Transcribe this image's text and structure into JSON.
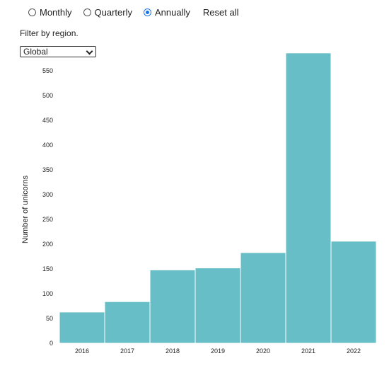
{
  "controls": {
    "period_options": [
      {
        "label": "Monthly",
        "selected": false
      },
      {
        "label": "Quarterly",
        "selected": false
      },
      {
        "label": "Annually",
        "selected": true
      }
    ],
    "reset_label": "Reset all"
  },
  "filter": {
    "label": "Filter by region.",
    "selected_region": "Global"
  },
  "colors": {
    "bar": "#67bec6",
    "radio_accent": "#1a73e8"
  },
  "chart_data": {
    "type": "bar",
    "categories": [
      "2016",
      "2017",
      "2018",
      "2019",
      "2020",
      "2021",
      "2022"
    ],
    "values": [
      63,
      84,
      148,
      152,
      183,
      586,
      206
    ],
    "xlabel": "",
    "ylabel": "Number of unicorns",
    "ylim": [
      0,
      600
    ],
    "yticks": [
      0,
      50,
      100,
      150,
      200,
      250,
      300,
      350,
      400,
      450,
      500,
      550
    ],
    "grid": false,
    "legend": "none"
  }
}
